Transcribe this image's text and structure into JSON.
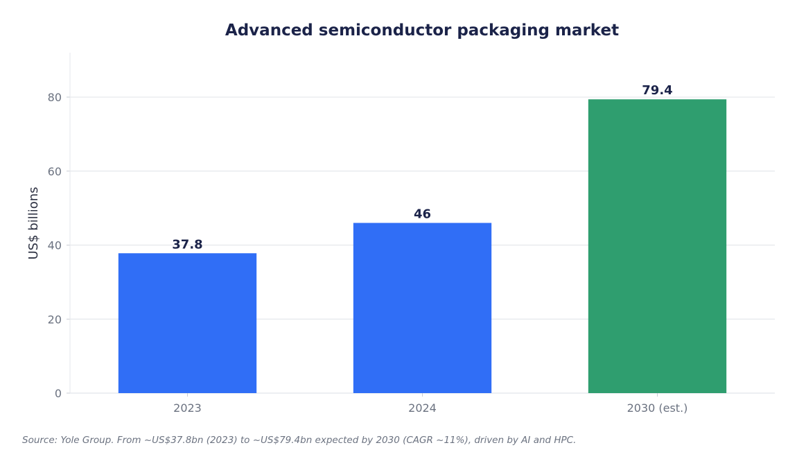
{
  "chart_data": {
    "type": "bar",
    "title": "Advanced semiconductor packaging market",
    "xlabel": "",
    "ylabel": "US$ billions",
    "categories": [
      "2023",
      "2024",
      "2030 (est.)"
    ],
    "values": [
      37.8,
      46,
      79.4
    ],
    "value_labels": [
      "37.8",
      "46",
      "79.4"
    ],
    "bar_colors": [
      "#306ef6",
      "#306ef6",
      "#2f9e6f"
    ],
    "ylim": [
      0,
      92
    ],
    "yticks": [
      0,
      20,
      40,
      60,
      80
    ],
    "grid": true,
    "legend": "none"
  },
  "source_note": "Source: Yole Group. From ~US$37.8bn (2023) to ~US$79.4bn expected by 2030 (CAGR ~11%), driven by AI and HPC."
}
